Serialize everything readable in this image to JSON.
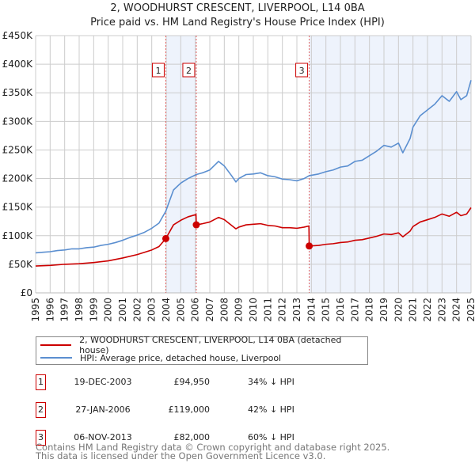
{
  "chart_data": {
    "type": "line",
    "title": "2, WOODHURST CRESCENT, LIVERPOOL, L14 0BA",
    "subtitle": "Price paid vs. HM Land Registry's House Price Index (HPI)",
    "xlim": [
      1995,
      2025
    ],
    "ylim": [
      0,
      450000
    ],
    "x_ticks": [
      "1995",
      "1996",
      "1997",
      "1998",
      "1999",
      "2000",
      "2001",
      "2002",
      "2003",
      "2004",
      "2005",
      "2006",
      "2007",
      "2008",
      "2009",
      "2010",
      "2011",
      "2012",
      "2013",
      "2014",
      "2015",
      "2016",
      "2017",
      "2018",
      "2019",
      "2020",
      "2021",
      "2022",
      "2023",
      "2024",
      "2025"
    ],
    "y_ticks": [
      {
        "v": 0,
        "label": "£0"
      },
      {
        "v": 50000,
        "label": "£50K"
      },
      {
        "v": 100000,
        "label": "£100K"
      },
      {
        "v": 150000,
        "label": "£150K"
      },
      {
        "v": 200000,
        "label": "£200K"
      },
      {
        "v": 250000,
        "label": "£250K"
      },
      {
        "v": 300000,
        "label": "£300K"
      },
      {
        "v": 350000,
        "label": "£350K"
      },
      {
        "v": 400000,
        "label": "£400K"
      },
      {
        "v": 450000,
        "label": "£450K"
      }
    ],
    "grid": true,
    "legend_placement": "below",
    "series": [
      {
        "name": "2, WOODHURST CRESCENT, LIVERPOOL, L14 0BA (detached house)",
        "color": "#cc0000",
        "points": [
          [
            1995,
            47
          ],
          [
            1996,
            48
          ],
          [
            1997,
            50
          ],
          [
            1998,
            51
          ],
          [
            1999,
            53
          ],
          [
            2000,
            56
          ],
          [
            2001,
            61
          ],
          [
            2002,
            67
          ],
          [
            2003,
            75
          ],
          [
            2003.5,
            81
          ],
          [
            2003.97,
            95
          ],
          [
            2004.5,
            119
          ],
          [
            2005,
            127
          ],
          [
            2005.5,
            133
          ],
          [
            2006.05,
            137
          ],
          [
            2006.07,
            119
          ],
          [
            2006.5,
            121
          ],
          [
            2007,
            124
          ],
          [
            2007.6,
            132
          ],
          [
            2008,
            128
          ],
          [
            2008.5,
            118
          ],
          [
            2008.8,
            112
          ],
          [
            2009,
            115
          ],
          [
            2009.5,
            119
          ],
          [
            2010,
            120
          ],
          [
            2010.5,
            121
          ],
          [
            2011,
            118
          ],
          [
            2011.5,
            117
          ],
          [
            2012,
            114
          ],
          [
            2012.5,
            114
          ],
          [
            2013,
            113
          ],
          [
            2013.5,
            115
          ],
          [
            2013.83,
            117
          ],
          [
            2013.85,
            82
          ],
          [
            2014.5,
            83
          ],
          [
            2015,
            85
          ],
          [
            2015.5,
            86
          ],
          [
            2016,
            88
          ],
          [
            2016.5,
            89
          ],
          [
            2017,
            92
          ],
          [
            2017.5,
            93
          ],
          [
            2018,
            96
          ],
          [
            2018.5,
            99
          ],
          [
            2019,
            103
          ],
          [
            2019.5,
            102
          ],
          [
            2020,
            105
          ],
          [
            2020.3,
            98
          ],
          [
            2020.8,
            108
          ],
          [
            2021,
            116
          ],
          [
            2021.5,
            124
          ],
          [
            2022,
            128
          ],
          [
            2022.5,
            132
          ],
          [
            2023,
            138
          ],
          [
            2023.5,
            134
          ],
          [
            2024,
            141
          ],
          [
            2024.3,
            135
          ],
          [
            2024.7,
            138
          ],
          [
            2025,
            149
          ]
        ],
        "unit": "thousand GBP"
      },
      {
        "name": "HPI: Average price, detached house, Liverpool",
        "color": "#5b8fd0",
        "points": [
          [
            1995,
            70
          ],
          [
            1995.5,
            71
          ],
          [
            1996,
            72
          ],
          [
            1996.5,
            74
          ],
          [
            1997,
            75
          ],
          [
            1997.5,
            77
          ],
          [
            1998,
            77
          ],
          [
            1998.5,
            79
          ],
          [
            1999,
            80
          ],
          [
            1999.5,
            83
          ],
          [
            2000,
            85
          ],
          [
            2000.5,
            88
          ],
          [
            2001,
            92
          ],
          [
            2001.5,
            97
          ],
          [
            2002,
            101
          ],
          [
            2002.5,
            106
          ],
          [
            2003,
            113
          ],
          [
            2003.5,
            122
          ],
          [
            2003.97,
            143
          ],
          [
            2004.5,
            180
          ],
          [
            2005,
            192
          ],
          [
            2005.5,
            200
          ],
          [
            2006.07,
            207
          ],
          [
            2006.5,
            210
          ],
          [
            2007,
            215
          ],
          [
            2007.6,
            230
          ],
          [
            2008,
            222
          ],
          [
            2008.5,
            205
          ],
          [
            2008.8,
            194
          ],
          [
            2009,
            200
          ],
          [
            2009.5,
            207
          ],
          [
            2010,
            208
          ],
          [
            2010.5,
            210
          ],
          [
            2011,
            205
          ],
          [
            2011.5,
            203
          ],
          [
            2012,
            199
          ],
          [
            2012.5,
            198
          ],
          [
            2013,
            196
          ],
          [
            2013.5,
            200
          ],
          [
            2013.85,
            205
          ],
          [
            2014.5,
            208
          ],
          [
            2015,
            212
          ],
          [
            2015.5,
            215
          ],
          [
            2016,
            220
          ],
          [
            2016.5,
            222
          ],
          [
            2017,
            230
          ],
          [
            2017.5,
            232
          ],
          [
            2018,
            240
          ],
          [
            2018.5,
            248
          ],
          [
            2019,
            258
          ],
          [
            2019.5,
            255
          ],
          [
            2020,
            262
          ],
          [
            2020.3,
            245
          ],
          [
            2020.8,
            270
          ],
          [
            2021,
            290
          ],
          [
            2021.5,
            310
          ],
          [
            2022,
            320
          ],
          [
            2022.5,
            330
          ],
          [
            2023,
            345
          ],
          [
            2023.5,
            335
          ],
          [
            2024,
            352
          ],
          [
            2024.3,
            338
          ],
          [
            2024.7,
            345
          ],
          [
            2025,
            372
          ]
        ],
        "unit": "thousand GBP"
      }
    ],
    "sales": [
      {
        "id": "1",
        "x": 2003.97,
        "value": 94950,
        "date": "19-DEC-2003",
        "price": "£94,950",
        "hpi": "34% ↓ HPI"
      },
      {
        "id": "2",
        "x": 2006.07,
        "value": 119000,
        "date": "27-JAN-2006",
        "price": "£119,000",
        "hpi": "42% ↓ HPI"
      },
      {
        "id": "3",
        "x": 2013.85,
        "value": 82000,
        "date": "06-NOV-2013",
        "price": "£82,000",
        "hpi": "60% ↓ HPI"
      }
    ],
    "shaded_ranges": [
      [
        2003.97,
        2006.07
      ],
      [
        2013.85,
        2025
      ]
    ]
  },
  "legend": {
    "red_label": "2, WOODHURST CRESCENT, LIVERPOOL, L14 0BA (detached house)",
    "blue_label": "HPI: Average price, detached house, Liverpool"
  },
  "footer": {
    "line1": "Contains HM Land Registry data © Crown copyright and database right 2025.",
    "line2": "This data is licensed under the Open Government Licence v3.0."
  }
}
